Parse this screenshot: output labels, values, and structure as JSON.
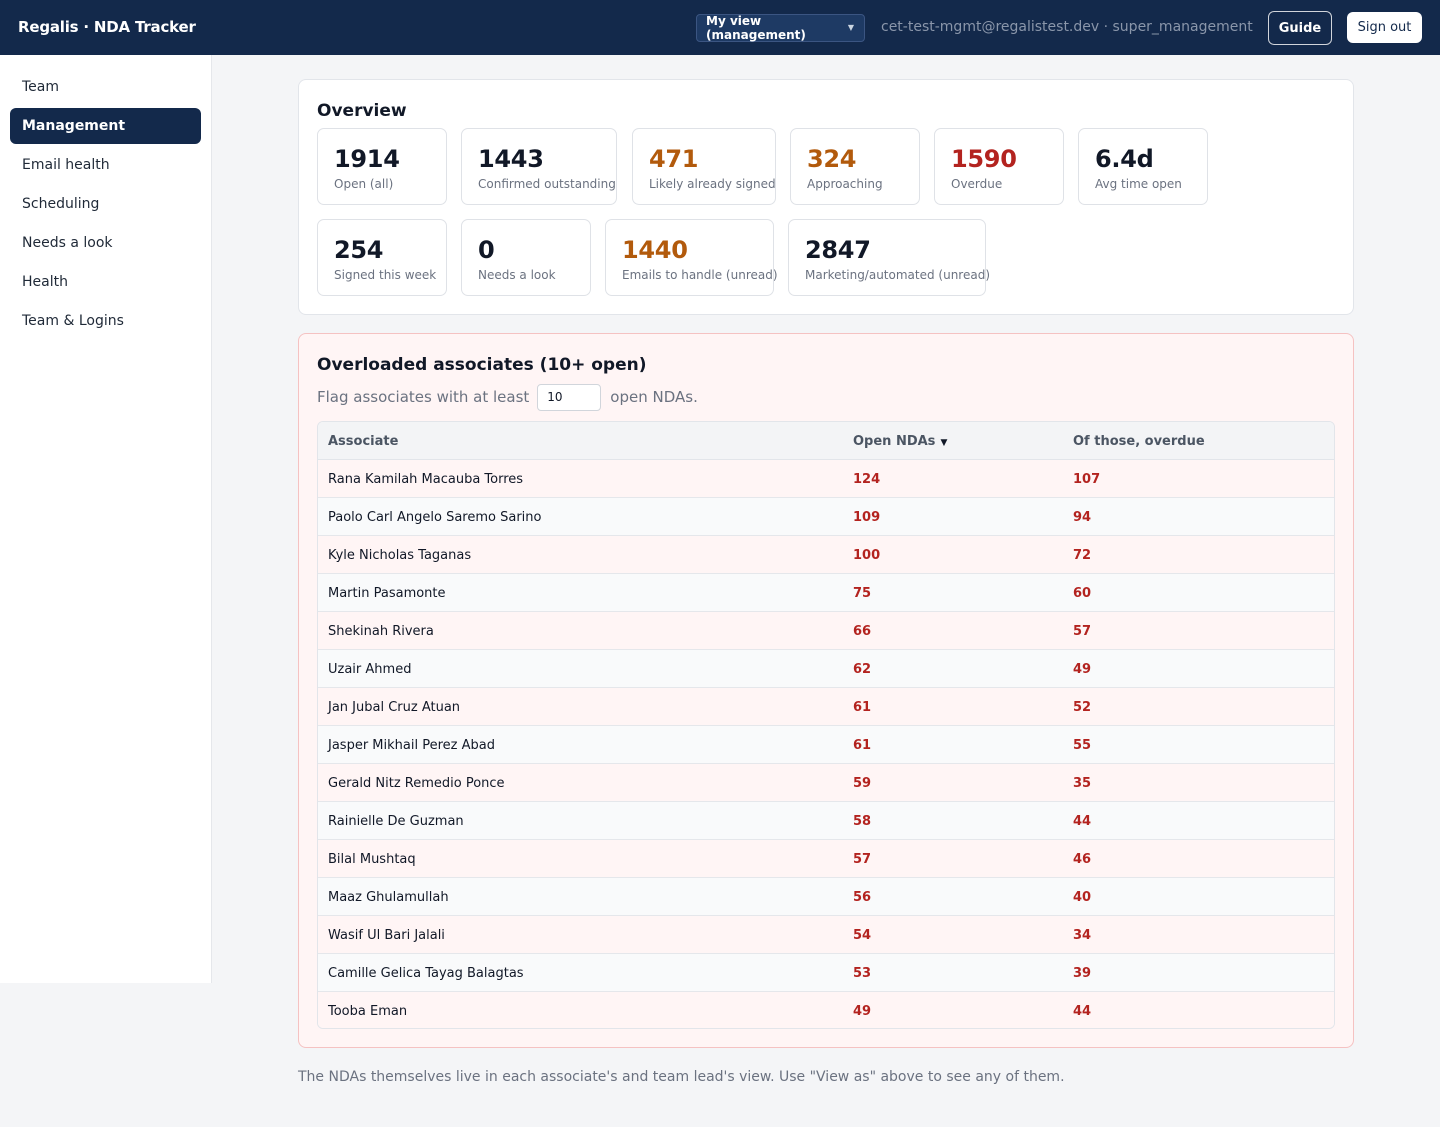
{
  "header": {
    "brand": "Regalis · NDA Tracker",
    "view_select": "My view (management)",
    "user": "cet-test-mgmt@regalistest.dev · super_management",
    "guide_label": "Guide",
    "signout_label": "Sign out"
  },
  "sidebar": {
    "items": [
      {
        "label": "Team",
        "active": false
      },
      {
        "label": "Management",
        "active": true
      },
      {
        "label": "Email health",
        "active": false
      },
      {
        "label": "Scheduling",
        "active": false
      },
      {
        "label": "Needs a look",
        "active": false
      },
      {
        "label": "Health",
        "active": false
      },
      {
        "label": "Team & Logins",
        "active": false
      }
    ]
  },
  "overview": {
    "title": "Overview",
    "stats": [
      {
        "value": "1914",
        "label": "Open (all)",
        "tone": "normal"
      },
      {
        "value": "1443",
        "label": "Confirmed outstanding",
        "tone": "normal"
      },
      {
        "value": "471",
        "label": "Likely already signed",
        "tone": "warn"
      },
      {
        "value": "324",
        "label": "Approaching",
        "tone": "warn"
      },
      {
        "value": "1590",
        "label": "Overdue",
        "tone": "danger"
      },
      {
        "value": "6.4d",
        "label": "Avg time open",
        "tone": "normal"
      },
      {
        "value": "254",
        "label": "Signed this week",
        "tone": "normal"
      },
      {
        "value": "0",
        "label": "Needs a look",
        "tone": "normal"
      },
      {
        "value": "1440",
        "label": "Emails to handle (unread)",
        "tone": "warn"
      },
      {
        "value": "2847",
        "label": "Marketing/automated (unread)",
        "tone": "normal"
      }
    ]
  },
  "overloaded": {
    "title": "Overloaded associates (10+ open)",
    "threshold_prefix": "Flag associates with at least",
    "threshold_value": "10",
    "threshold_suffix": "open NDAs.",
    "columns": [
      "Associate",
      "Open NDAs",
      "Of those, overdue"
    ],
    "rows": [
      {
        "name": "Rana Kamilah Macauba Torres",
        "open": "124",
        "overdue": "107"
      },
      {
        "name": "Paolo Carl Angelo Saremo Sarino",
        "open": "109",
        "overdue": "94"
      },
      {
        "name": "Kyle Nicholas Taganas",
        "open": "100",
        "overdue": "72"
      },
      {
        "name": "Martin Pasamonte",
        "open": "75",
        "overdue": "60"
      },
      {
        "name": "Shekinah Rivera",
        "open": "66",
        "overdue": "57"
      },
      {
        "name": "Uzair Ahmed",
        "open": "62",
        "overdue": "49"
      },
      {
        "name": "Jan Jubal Cruz Atuan",
        "open": "61",
        "overdue": "52"
      },
      {
        "name": "Jasper Mikhail Perez Abad",
        "open": "61",
        "overdue": "55"
      },
      {
        "name": "Gerald Nitz Remedio Ponce",
        "open": "59",
        "overdue": "35"
      },
      {
        "name": "Rainielle De Guzman",
        "open": "58",
        "overdue": "44"
      },
      {
        "name": "Bilal Mushtaq",
        "open": "57",
        "overdue": "46"
      },
      {
        "name": "Maaz Ghulamullah",
        "open": "56",
        "overdue": "40"
      },
      {
        "name": "Wasif Ul Bari Jalali",
        "open": "54",
        "overdue": "34"
      },
      {
        "name": "Camille Gelica Tayag Balagtas",
        "open": "53",
        "overdue": "39"
      },
      {
        "name": "Tooba Eman",
        "open": "49",
        "overdue": "44"
      }
    ]
  },
  "footnote": "The NDAs themselves live in each associate's and team lead's view. Use \"View as\" above to see any of them."
}
